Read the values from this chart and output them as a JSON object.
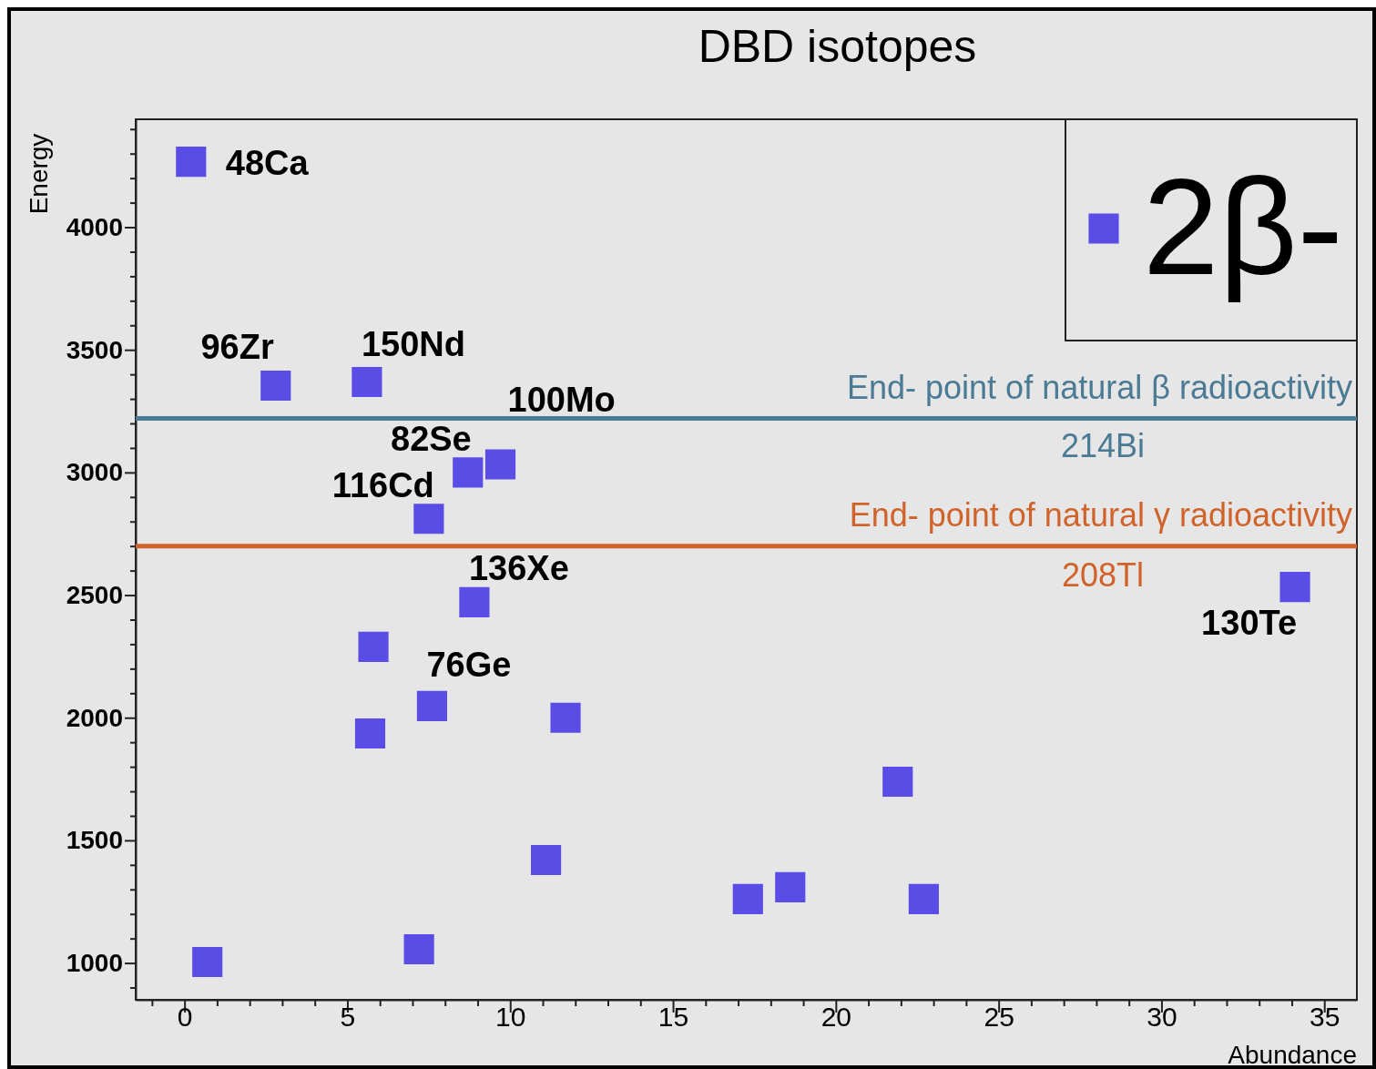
{
  "chart_data": {
    "type": "scatter",
    "title": "DBD isotopes",
    "xlabel": "Abundance",
    "ylabel": "Energy",
    "xlim": [
      -1.5,
      36
    ],
    "ylim": [
      850,
      4440
    ],
    "xticks": [
      {
        "value": -1,
        "label": null
      },
      0,
      {
        "value": 1,
        "label": null
      },
      {
        "value": 2,
        "label": null
      },
      {
        "value": 3,
        "label": null
      },
      {
        "value": 4,
        "label": null
      },
      5,
      {
        "value": 6,
        "label": null
      },
      {
        "value": 7,
        "label": null
      },
      {
        "value": 8,
        "label": null
      },
      {
        "value": 9,
        "label": null
      },
      10,
      {
        "value": 11,
        "label": null
      },
      {
        "value": 12,
        "label": null
      },
      {
        "value": 13,
        "label": null
      },
      {
        "value": 14,
        "label": null
      },
      15,
      {
        "value": 16,
        "label": null
      },
      {
        "value": 17,
        "label": null
      },
      {
        "value": 18,
        "label": null
      },
      {
        "value": 19,
        "label": null
      },
      20,
      {
        "value": 21,
        "label": null
      },
      {
        "value": 22,
        "label": null
      },
      {
        "value": 23,
        "label": null
      },
      {
        "value": 24,
        "label": null
      },
      25,
      {
        "value": 26,
        "label": null
      },
      {
        "value": 27,
        "label": null
      },
      {
        "value": 28,
        "label": null
      },
      {
        "value": 29,
        "label": null
      },
      30,
      {
        "value": 31,
        "label": null
      },
      {
        "value": 32,
        "label": null
      },
      {
        "value": 33,
        "label": null
      },
      {
        "value": 34,
        "label": null
      },
      35
    ],
    "yticks": [
      {
        "value": 900,
        "label": null
      },
      1000,
      {
        "value": 1100,
        "label": null
      },
      {
        "value": 1200,
        "label": null
      },
      {
        "value": 1300,
        "label": null
      },
      {
        "value": 1400,
        "label": null
      },
      1500,
      {
        "value": 1600,
        "label": null
      },
      {
        "value": 1700,
        "label": null
      },
      {
        "value": 1800,
        "label": null
      },
      {
        "value": 1900,
        "label": null
      },
      2000,
      {
        "value": 2100,
        "label": null
      },
      {
        "value": 2200,
        "label": null
      },
      {
        "value": 2300,
        "label": null
      },
      {
        "value": 2400,
        "label": null
      },
      2500,
      {
        "value": 2600,
        "label": null
      },
      {
        "value": 2700,
        "label": null
      },
      {
        "value": 2800,
        "label": null
      },
      {
        "value": 2900,
        "label": null
      },
      3000,
      {
        "value": 3100,
        "label": null
      },
      {
        "value": 3200,
        "label": null
      },
      {
        "value": 3300,
        "label": null
      },
      {
        "value": 3400,
        "label": null
      },
      3500,
      {
        "value": 3600,
        "label": null
      },
      {
        "value": 3700,
        "label": null
      },
      {
        "value": 3800,
        "label": null
      },
      {
        "value": 3900,
        "label": null
      },
      4000,
      {
        "value": 4100,
        "label": null
      },
      {
        "value": 4200,
        "label": null
      },
      {
        "value": 4300,
        "label": null
      },
      {
        "value": 4400,
        "label": null
      }
    ],
    "grid": false,
    "legend": "top right",
    "marker": "square",
    "series": [
      {
        "name": "2β-",
        "color": "#5a4de6",
        "x": [
          0.2,
          2.8,
          5.6,
          9.7,
          8.7,
          7.5,
          8.9,
          34.1,
          5.8,
          7.6,
          5.7,
          11.7,
          21.9,
          11.1,
          17.3,
          18.6,
          22.7,
          7.2,
          0.7
        ],
        "values": [
          4267,
          3354,
          3369,
          3033,
          3000,
          2811,
          2471,
          2533,
          2289,
          2048,
          1936,
          2000,
          1739,
          1420,
          1261,
          1309,
          1261,
          1056,
          1004
        ]
      }
    ],
    "ref_lines": [
      {
        "axis": "y",
        "value": 3220,
        "label": "End- point of natural β radioactivity",
        "color": "#4a7a94"
      },
      {
        "axis": "y",
        "value": 2700,
        "label": "End- point of natural γ radioactivity",
        "color": "#d0632a"
      }
    ],
    "annotations": [
      {
        "text": "48Ca",
        "x": 0.2,
        "y": 4267
      },
      {
        "text": "96Zr",
        "x": 2.8,
        "y": 3354
      },
      {
        "text": "150Nd",
        "x": 5.6,
        "y": 3369
      },
      {
        "text": "100Mo",
        "x": 9.7,
        "y": 3033
      },
      {
        "text": "82Se",
        "x": 8.7,
        "y": 3000
      },
      {
        "text": "116Cd",
        "x": 7.5,
        "y": 2811
      },
      {
        "text": "136Xe",
        "x": 8.9,
        "y": 2471
      },
      {
        "text": "130Te",
        "x": 34.1,
        "y": 2533
      },
      {
        "text": "76Ge",
        "x": 7.6,
        "y": 2048
      },
      {
        "text": "214Bi",
        "x": 28.2,
        "y": 3220
      },
      {
        "text": "208Tl",
        "x": 28.2,
        "y": 2700
      }
    ]
  }
}
